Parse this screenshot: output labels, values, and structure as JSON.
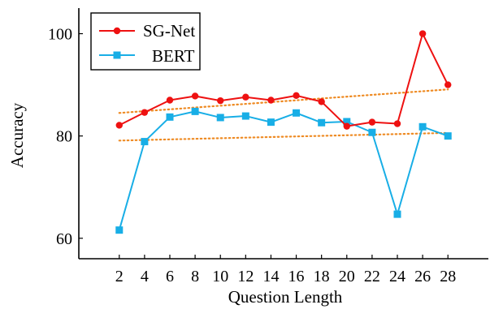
{
  "chart_data": {
    "type": "line",
    "title": "",
    "xlabel": "Question Length",
    "ylabel": "Accuracy",
    "x": [
      2,
      4,
      6,
      8,
      10,
      12,
      14,
      16,
      18,
      20,
      22,
      24,
      26,
      28
    ],
    "xticks": [
      "2",
      "4",
      "6",
      "8",
      "10",
      "12",
      "14",
      "16",
      "18",
      "20",
      "22",
      "24",
      "26",
      "28"
    ],
    "yticks": [
      {
        "value": 60,
        "label": "60"
      },
      {
        "value": 80,
        "label": "80"
      },
      {
        "value": 100,
        "label": "100"
      }
    ],
    "xlim": [
      -1.2,
      31.2
    ],
    "ylim": [
      56,
      105
    ],
    "grid": false,
    "legend": "top-left",
    "series": [
      {
        "name": "SG-Net",
        "color": "#ee1111",
        "marker": "circle",
        "values": [
          82.1,
          84.6,
          87.0,
          87.8,
          86.9,
          87.6,
          87.0,
          87.9,
          86.7,
          81.9,
          82.7,
          82.4,
          100.0,
          90.0
        ]
      },
      {
        "name": "BERT",
        "color": "#18aee6",
        "marker": "square",
        "values": [
          61.6,
          78.9,
          83.7,
          84.8,
          83.6,
          83.9,
          82.7,
          84.5,
          82.6,
          82.8,
          80.7,
          64.7,
          81.8,
          80.0
        ]
      }
    ],
    "trendlines": [
      {
        "of": "SG-Net",
        "color": "#ee8a22",
        "style": "dotted",
        "start": [
          2,
          84.5
        ],
        "end": [
          28,
          89.1
        ]
      },
      {
        "of": "BERT",
        "color": "#ee8a22",
        "style": "dotted",
        "start": [
          2,
          79.1
        ],
        "end": [
          28,
          80.6
        ]
      }
    ]
  }
}
